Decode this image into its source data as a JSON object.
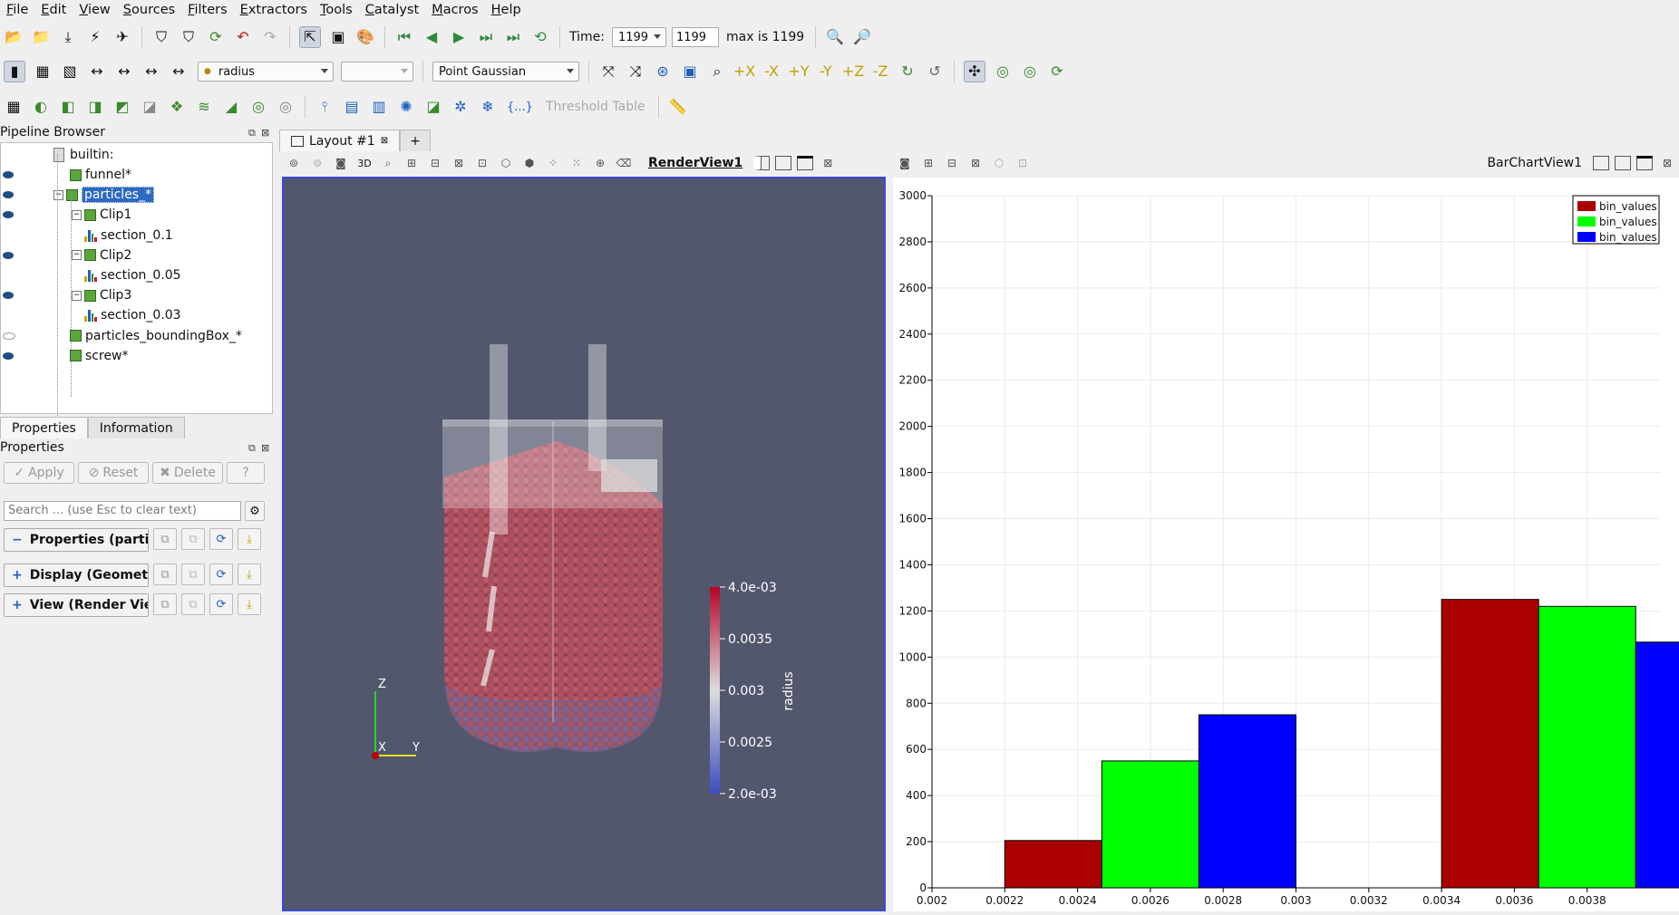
{
  "menu": [
    "File",
    "Edit",
    "View",
    "Sources",
    "Filters",
    "Extractors",
    "Tools",
    "Catalyst",
    "Macros",
    "Help"
  ],
  "toolbar1": {
    "time_label": "Time:",
    "time_value": "1199",
    "time_step": "1199",
    "max_label": "max is 1199"
  },
  "toolbar2": {
    "color_array": "radius",
    "component": "",
    "representation": "Point Gaussian"
  },
  "toolbar3": {
    "braces": "{...}",
    "threshold_table": "Threshold Table"
  },
  "pipeline": {
    "title": "Pipeline Browser",
    "root": "builtin:",
    "items": [
      {
        "label": "funnel*",
        "visible": true,
        "icon": "cube-icon"
      },
      {
        "label": "particles_*",
        "visible": true,
        "icon": "cube-icon",
        "selected": true
      },
      {
        "label": "Clip1",
        "visible": true,
        "icon": "cube-icon"
      },
      {
        "label": "section_0.1",
        "visible": false,
        "icon": "histogram-icon"
      },
      {
        "label": "Clip2",
        "visible": true,
        "icon": "cube-icon"
      },
      {
        "label": "section_0.05",
        "visible": false,
        "icon": "histogram-icon"
      },
      {
        "label": "Clip3",
        "visible": true,
        "icon": "cube-icon"
      },
      {
        "label": "section_0.03",
        "visible": false,
        "icon": "histogram-icon"
      },
      {
        "label": "particles_boundingBox_*",
        "visible": false,
        "icon": "cube-icon"
      },
      {
        "label": "screw*",
        "visible": true,
        "icon": "cube-icon"
      }
    ]
  },
  "panel_tabs": [
    "Properties",
    "Information"
  ],
  "properties": {
    "title": "Properties",
    "apply": "Apply",
    "reset": "Reset",
    "delete": "Delete",
    "help": "?",
    "search_placeholder": "Search ... (use Esc to clear text)",
    "sections": [
      "Properties (parti",
      "Display (Geomet",
      "View (Render Vie"
    ],
    "section_signs": [
      "−",
      "+",
      "+"
    ]
  },
  "layout": {
    "tab": "Layout #1",
    "add": "+",
    "render_view": "RenderView1",
    "chart_view": "BarChartView1",
    "three_d": "3D"
  },
  "render": {
    "colorbar_title": "radius",
    "colorbar_labels": [
      "4.0e-03",
      "0.0035",
      "0.003",
      "0.0025",
      "2.0e-03"
    ],
    "axes": {
      "z": "Z",
      "x": "X",
      "y": "Y"
    }
  },
  "colors": {
    "red": "#aa0000",
    "green": "#00ff00",
    "blue": "#0000ff",
    "selection": "#2d69c1",
    "render_bg": "#52576d"
  },
  "chart_data": {
    "type": "bar",
    "xlim": [
      0.002,
      0.004
    ],
    "ylim": [
      0,
      3000
    ],
    "x_ticks": [
      "0.002",
      "0.0022",
      "0.0024",
      "0.0026",
      "0.0028",
      "0.003",
      "0.0032",
      "0.0034",
      "0.0036",
      "0.0038"
    ],
    "y_ticks": [
      "0",
      "200",
      "400",
      "600",
      "800",
      "1000",
      "1200",
      "1400",
      "1600",
      "1800",
      "2000",
      "2200",
      "2400",
      "2600",
      "2800",
      "3000"
    ],
    "grid": true,
    "legend": "top-right",
    "bin_width": 0.0008,
    "series": [
      {
        "name": "bin_values",
        "color": "#aa0000",
        "bars": [
          {
            "x": 0.0022,
            "y": 205
          },
          {
            "x": 0.0034,
            "y": 1250
          }
        ]
      },
      {
        "name": "bin_values",
        "color": "#00ff00",
        "bars": [
          {
            "x": 0.0022,
            "y": 550
          },
          {
            "x": 0.0034,
            "y": 1220
          }
        ]
      },
      {
        "name": "bin_values",
        "color": "#0000ff",
        "bars": [
          {
            "x": 0.0022,
            "y": 750
          },
          {
            "x": 0.0034,
            "y": 1065
          }
        ]
      }
    ]
  }
}
